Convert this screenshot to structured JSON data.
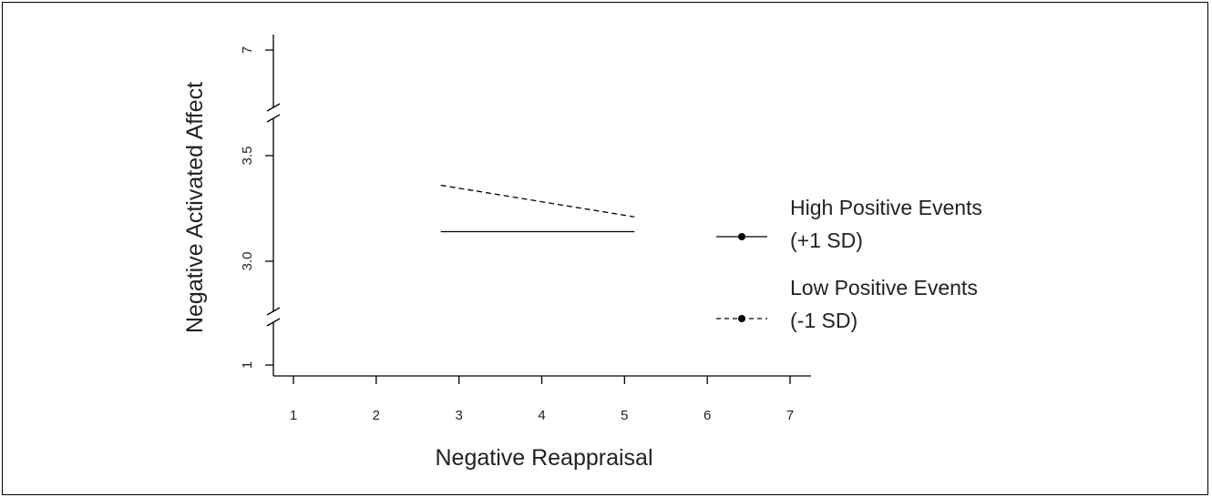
{
  "chart_data": {
    "type": "line",
    "xlabel": "Negative Reappraisal",
    "ylabel": "Negative Activated Affect",
    "x_ticks": [
      "1",
      "2",
      "3",
      "4",
      "5",
      "6",
      "7"
    ],
    "y_ticks": [
      "1",
      "3.0",
      "3.5",
      "7"
    ],
    "xlim": [
      1,
      7
    ],
    "y_axis_breaks": [
      [
        1,
        2.75
      ],
      [
        3.75,
        7
      ]
    ],
    "grid": false,
    "legend_position": "right",
    "series": [
      {
        "name": "High Positive Events",
        "name_line2": "(+1 SD)",
        "line_style": "solid",
        "x": [
          2.78,
          5.12
        ],
        "y": [
          3.14,
          3.14
        ]
      },
      {
        "name": "Low Positive Events",
        "name_line2": "(-1 SD)",
        "line_style": "dashed",
        "x": [
          2.78,
          5.12
        ],
        "y": [
          3.36,
          3.21
        ]
      }
    ]
  }
}
